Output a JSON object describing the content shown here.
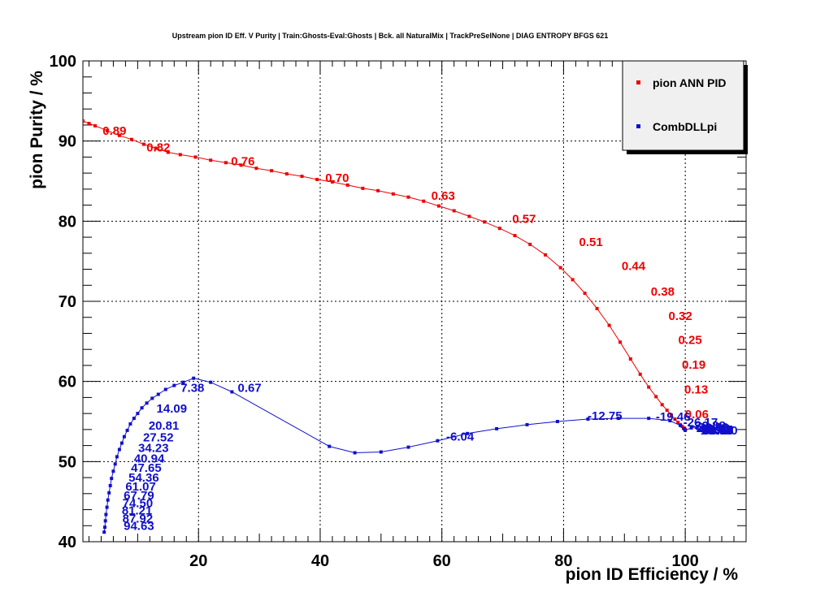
{
  "colors": {
    "series1": "#ee0000",
    "series2": "#1010cc"
  },
  "chart_data": {
    "type": "line",
    "title": "Upstream pion ID Eff. V Purity | Train:Ghosts-Eval:Ghosts | Bck. all NaturalMix | TrackPreSelNone | DIAG ENTROPY BFGS 621",
    "xlabel": "pion ID Efficiency / %",
    "ylabel": "pion Purity / %",
    "xlim": [
      1,
      110
    ],
    "ylim": [
      40,
      100
    ],
    "x_ticks": [
      "20",
      "40",
      "60",
      "80",
      "100"
    ],
    "x_tick_values": [
      20,
      40,
      60,
      80,
      100
    ],
    "y_ticks": [
      "40",
      "50",
      "60",
      "70",
      "80",
      "90",
      "100"
    ],
    "y_tick_values": [
      40,
      50,
      60,
      70,
      80,
      90,
      100
    ],
    "grid": true,
    "legend_position": "top-right",
    "series": [
      {
        "name": "pion ANN PID",
        "x": [
          1,
          2,
          3,
          5,
          7,
          9,
          11,
          13,
          15,
          17,
          19.5,
          22,
          24.5,
          27,
          29.5,
          32,
          34.5,
          37,
          39.5,
          42,
          44.5,
          47,
          49.5,
          52,
          54.5,
          57,
          59.5,
          62,
          64.5,
          67,
          69.5,
          72,
          74.5,
          77,
          79.5,
          81.5,
          83.5,
          85.5,
          87.5,
          89.3,
          91,
          92.6,
          94,
          95.2,
          96.2,
          97,
          97.7,
          98.3,
          98.8,
          99.2,
          99.5,
          99.7,
          99.85,
          99.95,
          100
        ],
        "y": [
          92.5,
          92.2,
          91.9,
          91.3,
          90.7,
          90.2,
          89.6,
          89.1,
          88.6,
          88.3,
          88.0,
          87.6,
          87.3,
          87.0,
          86.6,
          86.3,
          85.9,
          85.6,
          85.2,
          84.9,
          84.5,
          84.1,
          83.8,
          83.4,
          83.0,
          82.5,
          81.9,
          81.3,
          80.6,
          79.9,
          79.1,
          78.2,
          77.1,
          75.8,
          74.2,
          72.7,
          71.0,
          69.1,
          67.0,
          64.9,
          62.8,
          60.9,
          59.3,
          58.1,
          57.1,
          56.4,
          55.8,
          55.3,
          54.9,
          54.6,
          54.4,
          54.2,
          54.1,
          54.05,
          54.0
        ],
        "labels": [
          {
            "text": "0.89",
            "x": 6.2,
            "y": 91.3
          },
          {
            "text": "0.82",
            "x": 13.4,
            "y": 89.2
          },
          {
            "text": "0.76",
            "x": 27.3,
            "y": 87.5
          },
          {
            "text": "0.70",
            "x": 42.8,
            "y": 85.4
          },
          {
            "text": "0.63",
            "x": 60.2,
            "y": 83.2
          },
          {
            "text": "0.57",
            "x": 73.5,
            "y": 80.3
          },
          {
            "text": "0.51",
            "x": 84.5,
            "y": 77.4
          },
          {
            "text": "0.44",
            "x": 91.5,
            "y": 74.4
          },
          {
            "text": "0.38",
            "x": 96.3,
            "y": 71.2
          },
          {
            "text": "0.32",
            "x": 99.2,
            "y": 68.2
          },
          {
            "text": "0.25",
            "x": 100.8,
            "y": 65.2
          },
          {
            "text": "0.19",
            "x": 101.4,
            "y": 62.1
          },
          {
            "text": "0.13",
            "x": 101.8,
            "y": 59.0
          },
          {
            "text": "0.06",
            "x": 101.9,
            "y": 55.9
          }
        ]
      },
      {
        "name": "CombDLLpi",
        "x": [
          4.5,
          4.6,
          4.7,
          4.8,
          4.95,
          5.1,
          5.3,
          5.5,
          5.7,
          6.0,
          6.3,
          6.6,
          7.0,
          7.4,
          7.8,
          8.3,
          8.8,
          9.4,
          10.0,
          10.7,
          11.5,
          12.4,
          13.4,
          14.6,
          16,
          17.5,
          19.2,
          22,
          25.5,
          41.5,
          45.7,
          50,
          54.5,
          59.3,
          64.2,
          69,
          74,
          79,
          84,
          89,
          94,
          97.5,
          99.2,
          99.8,
          100,
          101,
          102,
          103,
          104,
          105,
          106
        ],
        "y": [
          41.2,
          41.8,
          42.6,
          43.4,
          44.3,
          45.2,
          46.1,
          47.0,
          47.9,
          48.8,
          49.7,
          50.6,
          51.5,
          52.3,
          53.1,
          53.9,
          54.7,
          55.4,
          56.0,
          56.7,
          57.3,
          57.9,
          58.4,
          59.0,
          59.5,
          59.9,
          60.4,
          59.9,
          58.7,
          51.9,
          51.1,
          51.2,
          51.8,
          52.6,
          53.5,
          54.1,
          54.6,
          55.0,
          55.3,
          55.4,
          55.4,
          55.1,
          54.5,
          54.1,
          53.9,
          54.2,
          54.4,
          54.3,
          54.2,
          54.1,
          54.0
        ],
        "labels": [
          {
            "text": "94.63",
            "x": 10.2,
            "y": 42.0
          },
          {
            "text": "87.92",
            "x": 10.0,
            "y": 42.9
          },
          {
            "text": "81.21",
            "x": 9.9,
            "y": 43.9
          },
          {
            "text": "74.50",
            "x": 10.0,
            "y": 44.8
          },
          {
            "text": "67.79",
            "x": 10.2,
            "y": 45.8
          },
          {
            "text": "61.07",
            "x": 10.5,
            "y": 46.9
          },
          {
            "text": "54.36",
            "x": 11.0,
            "y": 48.0
          },
          {
            "text": "47.65",
            "x": 11.4,
            "y": 49.2
          },
          {
            "text": "40.94",
            "x": 11.9,
            "y": 50.4
          },
          {
            "text": "34.23",
            "x": 12.6,
            "y": 51.7
          },
          {
            "text": "27.52",
            "x": 13.4,
            "y": 53.0
          },
          {
            "text": "20.81",
            "x": 14.3,
            "y": 54.5
          },
          {
            "text": "14.09",
            "x": 15.6,
            "y": 56.6
          },
          {
            "text": "7.38",
            "x": 19.0,
            "y": 59.2
          },
          {
            "text": "0.67",
            "x": 28.4,
            "y": 59.2
          },
          {
            "text": "-6.04",
            "x": 63.0,
            "y": 53.1
          },
          {
            "text": "-12.75",
            "x": 86.8,
            "y": 55.7
          },
          {
            "text": "-19.46",
            "x": 98.0,
            "y": 55.6
          },
          {
            "text": "-26.17",
            "x": 102.5,
            "y": 54.9
          },
          {
            "text": "-32.88",
            "x": 103.8,
            "y": 54.5
          },
          {
            "text": "-39.59",
            "x": 104.3,
            "y": 54.3
          },
          {
            "text": "-46.30",
            "x": 104.5,
            "y": 54.2
          },
          {
            "text": "-53.01",
            "x": 104.7,
            "y": 54.1
          },
          {
            "text": "-59.72",
            "x": 104.8,
            "y": 54.0
          },
          {
            "text": "-66.44",
            "x": 104.9,
            "y": 54.0
          },
          {
            "text": "-73.15",
            "x": 105.0,
            "y": 54.0
          },
          {
            "text": "-79.86",
            "x": 105.0,
            "y": 53.9
          },
          {
            "text": "-86.57",
            "x": 105.1,
            "y": 53.9
          },
          {
            "text": "-93.28",
            "x": 105.1,
            "y": 53.9
          },
          {
            "text": "-100.00",
            "x": 105.2,
            "y": 53.9
          }
        ]
      }
    ]
  }
}
